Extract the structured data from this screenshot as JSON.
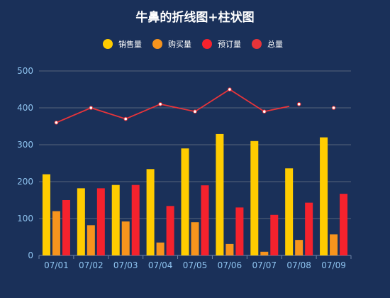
{
  "chart_data": {
    "type": "bar",
    "title": "牛鼻的折线图+柱状图",
    "categories": [
      "07/01",
      "07/02",
      "07/03",
      "07/04",
      "07/05",
      "07/06",
      "07/07",
      "07/08",
      "07/09"
    ],
    "series": [
      {
        "name": "销售量",
        "type": "bar",
        "color": "#ffcc00",
        "values": [
          220,
          182,
          191,
          234,
          290,
          329,
          310,
          236,
          320
        ]
      },
      {
        "name": "购买量",
        "type": "bar",
        "color": "#f7941d",
        "values": [
          120,
          82,
          92,
          35,
          90,
          31,
          10,
          42,
          57
        ]
      },
      {
        "name": "预订量",
        "type": "bar",
        "color": "#f5222d",
        "values": [
          150,
          182,
          191,
          134,
          190,
          130,
          110,
          143,
          167
        ]
      },
      {
        "name": "总量",
        "type": "line",
        "color": "#e8343a",
        "values": [
          360,
          400,
          370,
          410,
          390,
          450,
          390,
          410,
          400
        ]
      }
    ],
    "y_ticks": [
      "0",
      "100",
      "200",
      "300",
      "400",
      "500"
    ],
    "ylim": [
      0,
      500
    ],
    "grid": true,
    "legend": "top-center"
  }
}
